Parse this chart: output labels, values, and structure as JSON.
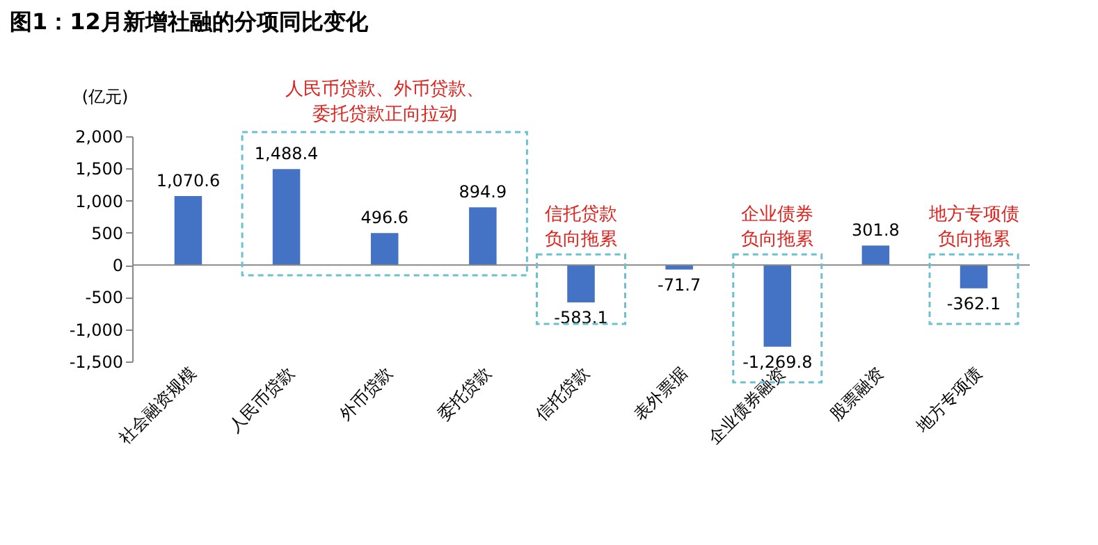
{
  "chart_data": {
    "type": "bar",
    "title": "图1：12月新增社融的分项同比变化",
    "ylabel": "(亿元)",
    "categories": [
      "社会融资规模",
      "人民币贷款",
      "外币贷款",
      "委托贷款",
      "信托贷款",
      "表外票据",
      "企业债券融资",
      "股票融资",
      "地方专项债"
    ],
    "values": [
      1070.6,
      1488.4,
      496.6,
      894.9,
      -583.1,
      -71.7,
      -1269.8,
      301.8,
      -362.1
    ],
    "value_labels": [
      "1,070.6",
      "1,488.4",
      "496.6",
      "894.9",
      "-583.1",
      "-71.7",
      "-1,269.8",
      "301.8",
      "-362.1"
    ],
    "color": "#4472c4",
    "ylim": [
      -1500,
      2000
    ],
    "yticks": [
      {
        "value": -1500,
        "label": "-1,500"
      },
      {
        "value": -1000,
        "label": "-1,000"
      },
      -500,
      0,
      500,
      {
        "value": 1000,
        "label": "1,000"
      },
      {
        "value": 1500,
        "label": "1,500"
      },
      {
        "value": 2000,
        "label": "2,000"
      }
    ],
    "annotations": [
      "人民币贷款、外币贷款、委托贷款正向拉动",
      "信托贷款负向拖累",
      "企业债券负向拖累",
      "地方专项债负向拖累"
    ]
  }
}
